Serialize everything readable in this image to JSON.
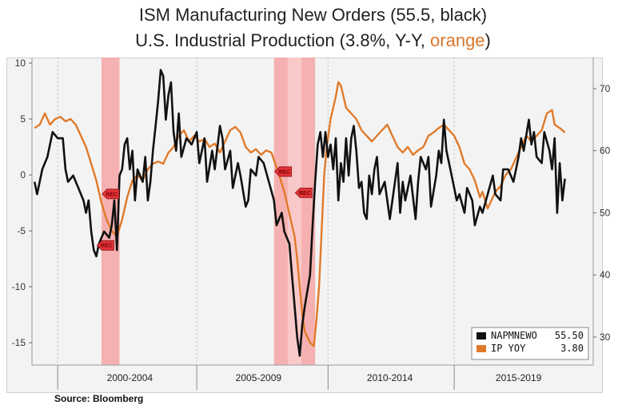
{
  "title": {
    "line1": "ISM Manufacturing New Orders (55.5, black)",
    "line2_prefix": "U.S. Industrial Production (3.8%, Y-Y, ",
    "line2_orange": "orange",
    "line2_suffix": ")"
  },
  "source": "Source: Bloomberg",
  "colors": {
    "ism": "#111111",
    "ip": "#e07a2a",
    "recession": "#f4a5a5",
    "recession_light": "#f9cccc",
    "background": "#f3f3f3"
  },
  "chart_data": {
    "type": "line",
    "x_domain": [
      1998.5,
      2020.3
    ],
    "left_axis": {
      "ylim": [
        -17,
        10.5
      ],
      "ticks": [
        10,
        5,
        0,
        -5,
        -10,
        -15
      ],
      "tick_labels": [
        "10",
        "5",
        "0",
        "-5",
        "-10",
        "-15"
      ]
    },
    "right_axis": {
      "ylim": [
        25.5,
        75
      ],
      "ticks": [
        70,
        60,
        50,
        40,
        30
      ],
      "tick_labels": [
        "70",
        "60",
        "50",
        "40",
        "30"
      ]
    },
    "period_labels": [
      {
        "label": "2000-2004",
        "center": 2002.3
      },
      {
        "label": "2005-2009",
        "center": 2007.3
      },
      {
        "label": "2010-2014",
        "center": 2012.4
      },
      {
        "label": "2015-2019",
        "center": 2017.4
      }
    ],
    "period_dividers": [
      1999.5,
      2004.9,
      2010.0,
      2014.9
    ],
    "recessions": [
      {
        "start": 2001.2,
        "end": 2001.9,
        "light": false
      },
      {
        "start": 2007.9,
        "end": 2009.5,
        "light": true
      }
    ],
    "rec_markers": [
      {
        "label": "REC",
        "x": 2001.6,
        "y": -1.7
      },
      {
        "label": "REC",
        "x": 2001.4,
        "y": -6.3
      },
      {
        "label": "REC",
        "x": 2008.3,
        "y": 0.3
      },
      {
        "label": "REC",
        "x": 2009.1,
        "y": -1.6
      }
    ],
    "series": [
      {
        "name": "NAPMNEWO",
        "axis": "right",
        "legend_value": "55.50",
        "points": [
          [
            1998.6,
            55
          ],
          [
            1998.7,
            53
          ],
          [
            1998.9,
            57
          ],
          [
            1999.1,
            59
          ],
          [
            1999.3,
            63
          ],
          [
            1999.5,
            62
          ],
          [
            1999.7,
            62
          ],
          [
            1999.8,
            57
          ],
          [
            1999.9,
            55
          ],
          [
            2000.1,
            56
          ],
          [
            2000.3,
            54
          ],
          [
            2000.5,
            52
          ],
          [
            2000.6,
            50
          ],
          [
            2000.7,
            52
          ],
          [
            2000.8,
            47
          ],
          [
            2000.9,
            44
          ],
          [
            2001.0,
            43
          ],
          [
            2001.1,
            45
          ],
          [
            2001.3,
            47
          ],
          [
            2001.5,
            46
          ],
          [
            2001.6,
            48
          ],
          [
            2001.7,
            52
          ],
          [
            2001.8,
            44
          ],
          [
            2001.9,
            56
          ],
          [
            2002.0,
            57
          ],
          [
            2002.1,
            61
          ],
          [
            2002.2,
            62
          ],
          [
            2002.3,
            57
          ],
          [
            2002.4,
            60
          ],
          [
            2002.5,
            52
          ],
          [
            2002.6,
            57
          ],
          [
            2002.7,
            56
          ],
          [
            2002.8,
            55
          ],
          [
            2002.9,
            59
          ],
          [
            2003.0,
            52
          ],
          [
            2003.1,
            55
          ],
          [
            2003.2,
            60
          ],
          [
            2003.3,
            64
          ],
          [
            2003.4,
            68
          ],
          [
            2003.5,
            73
          ],
          [
            2003.6,
            72
          ],
          [
            2003.7,
            65
          ],
          [
            2003.8,
            69
          ],
          [
            2003.9,
            71
          ],
          [
            2004.0,
            63
          ],
          [
            2004.1,
            60
          ],
          [
            2004.2,
            66
          ],
          [
            2004.3,
            59
          ],
          [
            2004.5,
            62
          ],
          [
            2004.7,
            61
          ],
          [
            2004.9,
            63
          ],
          [
            2005.0,
            58
          ],
          [
            2005.2,
            62
          ],
          [
            2005.3,
            55
          ],
          [
            2005.5,
            60
          ],
          [
            2005.6,
            57
          ],
          [
            2005.8,
            64
          ],
          [
            2005.9,
            62
          ],
          [
            2006.0,
            57
          ],
          [
            2006.2,
            60
          ],
          [
            2006.3,
            54
          ],
          [
            2006.5,
            58
          ],
          [
            2006.6,
            56
          ],
          [
            2006.8,
            51
          ],
          [
            2006.9,
            52
          ],
          [
            2007.0,
            57
          ],
          [
            2007.2,
            56
          ],
          [
            2007.3,
            59
          ],
          [
            2007.5,
            58
          ],
          [
            2007.7,
            55
          ],
          [
            2007.9,
            52
          ],
          [
            2008.0,
            48
          ],
          [
            2008.2,
            50
          ],
          [
            2008.3,
            47
          ],
          [
            2008.5,
            45
          ],
          [
            2008.6,
            40
          ],
          [
            2008.7,
            35
          ],
          [
            2008.8,
            30
          ],
          [
            2008.9,
            27
          ],
          [
            2009.0,
            32
          ],
          [
            2009.1,
            35
          ],
          [
            2009.3,
            40
          ],
          [
            2009.4,
            48
          ],
          [
            2009.5,
            55
          ],
          [
            2009.6,
            61
          ],
          [
            2009.7,
            63
          ],
          [
            2009.8,
            59
          ],
          [
            2009.9,
            63
          ],
          [
            2010.0,
            59
          ],
          [
            2010.1,
            61
          ],
          [
            2010.2,
            57
          ],
          [
            2010.3,
            62
          ],
          [
            2010.4,
            52
          ],
          [
            2010.5,
            58
          ],
          [
            2010.6,
            55
          ],
          [
            2010.7,
            62
          ],
          [
            2010.8,
            56
          ],
          [
            2010.9,
            62
          ],
          [
            2011.0,
            64
          ],
          [
            2011.1,
            60
          ],
          [
            2011.2,
            54
          ],
          [
            2011.3,
            55
          ],
          [
            2011.4,
            50
          ],
          [
            2011.5,
            49
          ],
          [
            2011.6,
            56
          ],
          [
            2011.7,
            53
          ],
          [
            2011.8,
            57
          ],
          [
            2011.9,
            59
          ],
          [
            2012.0,
            53
          ],
          [
            2012.2,
            55
          ],
          [
            2012.4,
            49
          ],
          [
            2012.5,
            52
          ],
          [
            2012.7,
            58
          ],
          [
            2012.8,
            50
          ],
          [
            2012.9,
            55
          ],
          [
            2013.0,
            52
          ],
          [
            2013.2,
            56
          ],
          [
            2013.4,
            49
          ],
          [
            2013.5,
            55
          ],
          [
            2013.6,
            59
          ],
          [
            2013.8,
            57
          ],
          [
            2013.9,
            59
          ],
          [
            2014.0,
            51
          ],
          [
            2014.2,
            56
          ],
          [
            2014.3,
            60
          ],
          [
            2014.4,
            58
          ],
          [
            2014.5,
            65
          ],
          [
            2014.6,
            60
          ],
          [
            2014.7,
            58
          ],
          [
            2014.9,
            54
          ],
          [
            2015.0,
            52
          ],
          [
            2015.1,
            53
          ],
          [
            2015.3,
            50
          ],
          [
            2015.4,
            54
          ],
          [
            2015.6,
            52
          ],
          [
            2015.7,
            48
          ],
          [
            2015.9,
            51
          ],
          [
            2016.0,
            50
          ],
          [
            2016.2,
            53
          ],
          [
            2016.4,
            56
          ],
          [
            2016.5,
            53
          ],
          [
            2016.7,
            52
          ],
          [
            2016.8,
            57
          ],
          [
            2017.0,
            57
          ],
          [
            2017.2,
            55
          ],
          [
            2017.4,
            59
          ],
          [
            2017.5,
            62
          ],
          [
            2017.6,
            60
          ],
          [
            2017.8,
            65
          ],
          [
            2017.9,
            61
          ],
          [
            2018.0,
            63
          ],
          [
            2018.1,
            59
          ],
          [
            2018.3,
            58
          ],
          [
            2018.4,
            63
          ],
          [
            2018.6,
            60
          ],
          [
            2018.7,
            57
          ],
          [
            2018.8,
            62
          ],
          [
            2018.9,
            50
          ],
          [
            2019.0,
            58
          ],
          [
            2019.1,
            52
          ],
          [
            2019.2,
            55.5
          ]
        ]
      },
      {
        "name": "IP  YOY",
        "axis": "left",
        "legend_value": "3.80",
        "points": [
          [
            1998.6,
            4.2
          ],
          [
            1998.8,
            4.5
          ],
          [
            1999.0,
            5.5
          ],
          [
            1999.2,
            4.5
          ],
          [
            1999.4,
            5.0
          ],
          [
            1999.6,
            5.2
          ],
          [
            1999.8,
            4.8
          ],
          [
            2000.0,
            5.0
          ],
          [
            2000.2,
            4.5
          ],
          [
            2000.4,
            3.5
          ],
          [
            2000.6,
            2.5
          ],
          [
            2000.8,
            1.0
          ],
          [
            2001.0,
            -0.5
          ],
          [
            2001.2,
            -2.5
          ],
          [
            2001.4,
            -4.0
          ],
          [
            2001.6,
            -5.0
          ],
          [
            2001.8,
            -5.5
          ],
          [
            2002.0,
            -4.0
          ],
          [
            2002.2,
            -2.0
          ],
          [
            2002.4,
            -0.5
          ],
          [
            2002.6,
            0.0
          ],
          [
            2002.8,
            -0.5
          ],
          [
            2003.0,
            0.5
          ],
          [
            2003.2,
            1.0
          ],
          [
            2003.4,
            1.2
          ],
          [
            2003.6,
            1.0
          ],
          [
            2003.8,
            2.0
          ],
          [
            2004.0,
            2.5
          ],
          [
            2004.2,
            3.5
          ],
          [
            2004.4,
            4.0
          ],
          [
            2004.6,
            3.0
          ],
          [
            2004.8,
            3.5
          ],
          [
            2005.0,
            3.0
          ],
          [
            2005.2,
            3.2
          ],
          [
            2005.4,
            2.5
          ],
          [
            2005.6,
            2.8
          ],
          [
            2005.8,
            2.0
          ],
          [
            2006.0,
            3.0
          ],
          [
            2006.2,
            4.0
          ],
          [
            2006.4,
            4.3
          ],
          [
            2006.6,
            3.8
          ],
          [
            2006.8,
            2.5
          ],
          [
            2007.0,
            2.0
          ],
          [
            2007.2,
            2.3
          ],
          [
            2007.4,
            1.8
          ],
          [
            2007.6,
            2.2
          ],
          [
            2007.8,
            2.0
          ],
          [
            2007.95,
            1.0
          ],
          [
            2008.1,
            0.0
          ],
          [
            2008.3,
            -1.5
          ],
          [
            2008.5,
            -3.5
          ],
          [
            2008.7,
            -5.5
          ],
          [
            2008.8,
            -7.5
          ],
          [
            2008.9,
            -10.0
          ],
          [
            2009.0,
            -12.5
          ],
          [
            2009.1,
            -14.0
          ],
          [
            2009.3,
            -15.0
          ],
          [
            2009.45,
            -15.3
          ],
          [
            2009.55,
            -13.0
          ],
          [
            2009.65,
            -10.0
          ],
          [
            2009.75,
            -5.0
          ],
          [
            2009.85,
            0.0
          ],
          [
            2009.95,
            2.5
          ],
          [
            2010.1,
            5.0
          ],
          [
            2010.3,
            7.0
          ],
          [
            2010.4,
            8.3
          ],
          [
            2010.5,
            8.0
          ],
          [
            2010.7,
            6.0
          ],
          [
            2010.9,
            5.5
          ],
          [
            2011.1,
            5.0
          ],
          [
            2011.3,
            4.0
          ],
          [
            2011.5,
            3.5
          ],
          [
            2011.7,
            3.0
          ],
          [
            2011.9,
            3.5
          ],
          [
            2012.1,
            4.0
          ],
          [
            2012.3,
            4.5
          ],
          [
            2012.5,
            3.5
          ],
          [
            2012.7,
            2.5
          ],
          [
            2012.9,
            2.0
          ],
          [
            2013.1,
            2.5
          ],
          [
            2013.3,
            1.8
          ],
          [
            2013.5,
            2.2
          ],
          [
            2013.7,
            2.5
          ],
          [
            2013.9,
            3.5
          ],
          [
            2014.1,
            3.8
          ],
          [
            2014.3,
            4.2
          ],
          [
            2014.5,
            4.5
          ],
          [
            2014.7,
            4.0
          ],
          [
            2014.9,
            3.5
          ],
          [
            2015.1,
            2.5
          ],
          [
            2015.3,
            1.0
          ],
          [
            2015.5,
            0.5
          ],
          [
            2015.7,
            -0.5
          ],
          [
            2015.9,
            -2.0
          ],
          [
            2016.0,
            -1.5
          ],
          [
            2016.2,
            -3.0
          ],
          [
            2016.3,
            -2.5
          ],
          [
            2016.5,
            -1.5
          ],
          [
            2016.7,
            -1.0
          ],
          [
            2016.9,
            0.0
          ],
          [
            2017.1,
            0.5
          ],
          [
            2017.3,
            1.5
          ],
          [
            2017.5,
            2.5
          ],
          [
            2017.7,
            3.5
          ],
          [
            2017.9,
            3.0
          ],
          [
            2018.1,
            3.5
          ],
          [
            2018.3,
            4.0
          ],
          [
            2018.5,
            5.5
          ],
          [
            2018.7,
            5.8
          ],
          [
            2018.8,
            4.5
          ],
          [
            2019.0,
            4.2
          ],
          [
            2019.2,
            3.8
          ]
        ]
      }
    ]
  }
}
